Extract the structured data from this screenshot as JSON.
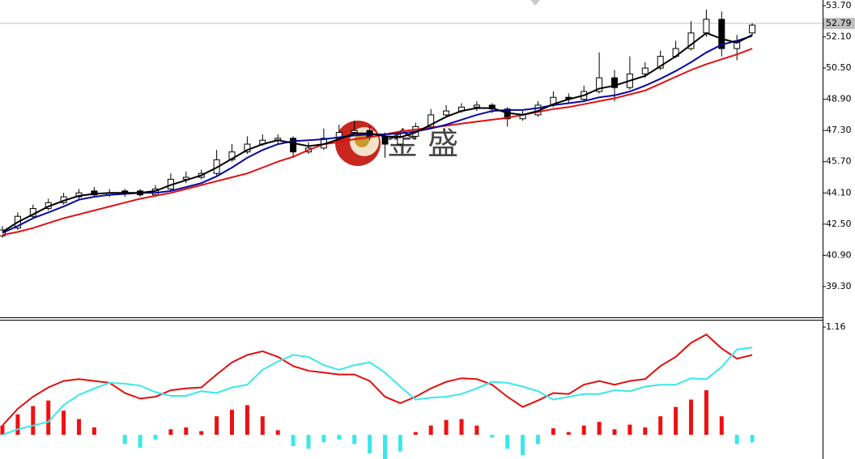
{
  "chart_data": [
    {
      "type": "candlestick",
      "watermark": "金 盛",
      "current_price": 52.79,
      "ylim": [
        37.72,
        53.99
      ],
      "yticks": [
        {
          "value": 53.7,
          "label": "53.70"
        },
        {
          "value": 52.1,
          "label": "52.10"
        },
        {
          "value": 50.5,
          "label": "50.50"
        },
        {
          "value": 48.9,
          "label": "48.90"
        },
        {
          "value": 47.3,
          "label": "47.30"
        },
        {
          "value": 45.7,
          "label": "45.70"
        },
        {
          "value": 44.1,
          "label": "44.10"
        },
        {
          "value": 42.5,
          "label": "42.50"
        },
        {
          "value": 40.9,
          "label": "40.90"
        },
        {
          "value": 39.3,
          "label": "39.30"
        }
      ],
      "open": [
        41.9,
        42.3,
        42.9,
        43.3,
        43.6,
        43.9,
        44.2,
        44.0,
        44.2,
        44.2,
        44.0,
        44.3,
        44.8,
        44.9,
        45.1,
        45.8,
        46.2,
        46.6,
        46.8,
        46.9,
        46.2,
        46.4,
        46.9,
        47.2,
        47.3,
        47.0,
        46.6,
        47.0,
        47.5,
        48.1,
        48.3,
        48.5,
        48.6,
        48.4,
        47.9,
        48.1,
        48.6,
        49.0,
        48.9,
        49.3,
        50.0,
        49.5,
        50.2,
        50.5,
        51.1,
        51.5,
        52.3,
        53.0,
        51.5,
        52.3
      ],
      "high": [
        42.4,
        43.1,
        43.5,
        43.8,
        44.1,
        44.3,
        44.4,
        44.3,
        44.3,
        44.3,
        44.5,
        45.1,
        45.2,
        45.3,
        46.3,
        46.6,
        47.0,
        47.1,
        47.1,
        47.0,
        46.7,
        47.4,
        47.6,
        47.8,
        47.5,
        47.2,
        47.3,
        47.7,
        48.4,
        48.6,
        48.7,
        48.8,
        48.7,
        48.5,
        48.3,
        48.8,
        49.3,
        49.2,
        49.6,
        51.3,
        50.4,
        51.1,
        50.8,
        51.4,
        51.9,
        52.9,
        53.5,
        53.4,
        52.2,
        52.8
      ],
      "low": [
        41.8,
        42.2,
        42.8,
        43.2,
        43.5,
        43.8,
        43.9,
        43.9,
        43.9,
        43.9,
        43.9,
        44.2,
        44.6,
        44.8,
        45.0,
        45.7,
        46.1,
        46.5,
        46.6,
        45.9,
        46.1,
        46.3,
        46.8,
        47.0,
        46.8,
        45.9,
        46.5,
        46.9,
        47.4,
        48.0,
        48.2,
        48.3,
        48.2,
        47.5,
        47.8,
        48.0,
        48.5,
        48.7,
        48.8,
        49.2,
        48.8,
        49.4,
        50.0,
        50.4,
        51.0,
        51.4,
        52.1,
        51.1,
        50.9,
        52.2
      ],
      "close": [
        42.2,
        42.9,
        43.3,
        43.6,
        43.9,
        44.1,
        44.0,
        44.1,
        44.1,
        44.0,
        44.3,
        44.8,
        44.9,
        45.1,
        45.8,
        46.2,
        46.6,
        46.8,
        46.9,
        46.2,
        46.4,
        46.9,
        47.2,
        47.3,
        47.0,
        46.6,
        47.0,
        47.5,
        48.1,
        48.3,
        48.5,
        48.6,
        48.4,
        47.9,
        48.1,
        48.6,
        49.0,
        48.9,
        49.3,
        50.0,
        49.5,
        50.2,
        50.5,
        51.1,
        51.5,
        52.3,
        53.0,
        51.5,
        51.9,
        52.7
      ],
      "series": [
        {
          "color": "#e01010",
          "values": [
            41.95,
            42.1,
            42.3,
            42.55,
            42.8,
            43.0,
            43.2,
            43.4,
            43.6,
            43.8,
            43.95,
            44.1,
            44.3,
            44.5,
            44.7,
            44.9,
            45.1,
            45.4,
            45.7,
            45.95,
            46.3,
            46.6,
            46.7,
            46.85,
            46.95,
            47.1,
            47.25,
            47.35,
            47.45,
            47.55,
            47.65,
            47.75,
            47.85,
            47.95,
            48.1,
            48.25,
            48.4,
            48.5,
            48.65,
            48.8,
            48.95,
            49.15,
            49.35,
            49.7,
            50.05,
            50.4,
            50.7,
            50.95,
            51.2,
            51.5
          ]
        },
        {
          "color": "#0a0aa0",
          "values": [
            42.05,
            42.4,
            42.8,
            43.1,
            43.4,
            43.75,
            43.9,
            44.0,
            44.05,
            44.1,
            44.1,
            44.2,
            44.4,
            44.6,
            44.95,
            45.4,
            45.9,
            46.3,
            46.6,
            46.75,
            46.8,
            46.85,
            46.95,
            47.05,
            47.1,
            47.1,
            47.15,
            47.25,
            47.4,
            47.6,
            47.85,
            48.1,
            48.3,
            48.35,
            48.35,
            48.45,
            48.6,
            48.7,
            48.8,
            49.0,
            49.1,
            49.3,
            49.6,
            49.95,
            50.35,
            50.8,
            51.3,
            51.7,
            51.9,
            52.15
          ]
        },
        {
          "color": "#000000",
          "values": [
            42.1,
            42.6,
            43.0,
            43.4,
            43.7,
            43.95,
            44.05,
            44.1,
            44.1,
            44.1,
            44.2,
            44.5,
            44.75,
            45.0,
            45.4,
            45.85,
            46.3,
            46.6,
            46.8,
            46.65,
            46.5,
            46.6,
            46.85,
            47.15,
            47.15,
            47.0,
            46.95,
            47.2,
            47.6,
            48.0,
            48.3,
            48.45,
            48.45,
            48.2,
            48.1,
            48.3,
            48.65,
            48.9,
            49.1,
            49.45,
            49.6,
            49.85,
            50.1,
            50.6,
            51.1,
            51.7,
            52.3,
            52.0,
            51.8,
            52.2
          ]
        }
      ]
    },
    {
      "type": "macd",
      "ylim": [
        -0.26,
        1.23
      ],
      "yticks": [
        1.16
      ],
      "histogram": {
        "color": "#ee1111",
        "negative_color": "#3ae8ea",
        "values": [
          0.1,
          0.22,
          0.31,
          0.37,
          0.26,
          0.17,
          0.08,
          0.0,
          -0.1,
          -0.14,
          -0.05,
          0.06,
          0.08,
          0.04,
          0.2,
          0.27,
          0.32,
          0.2,
          0.05,
          -0.12,
          -0.15,
          -0.08,
          -0.05,
          -0.1,
          -0.2,
          -0.26,
          -0.18,
          0.03,
          0.1,
          0.16,
          0.17,
          0.1,
          -0.03,
          -0.15,
          -0.22,
          -0.1,
          0.07,
          0.03,
          0.1,
          0.14,
          0.06,
          0.11,
          0.08,
          0.2,
          0.3,
          0.38,
          0.48,
          0.2,
          -0.1,
          -0.08
        ]
      },
      "series": [
        {
          "color": "#e01010",
          "values": [
            0.1,
            0.28,
            0.41,
            0.51,
            0.58,
            0.6,
            0.58,
            0.56,
            0.45,
            0.39,
            0.41,
            0.48,
            0.5,
            0.51,
            0.65,
            0.78,
            0.86,
            0.9,
            0.84,
            0.74,
            0.69,
            0.67,
            0.65,
            0.65,
            0.58,
            0.41,
            0.34,
            0.41,
            0.5,
            0.57,
            0.61,
            0.6,
            0.54,
            0.41,
            0.3,
            0.37,
            0.45,
            0.44,
            0.54,
            0.58,
            0.54,
            0.58,
            0.6,
            0.74,
            0.84,
            0.99,
            1.08,
            0.93,
            0.82,
            0.86
          ]
        },
        {
          "color": "#3ae8ea",
          "values": [
            0.0,
            0.06,
            0.1,
            0.14,
            0.32,
            0.43,
            0.5,
            0.56,
            0.55,
            0.53,
            0.46,
            0.42,
            0.42,
            0.47,
            0.45,
            0.51,
            0.54,
            0.7,
            0.79,
            0.86,
            0.84,
            0.75,
            0.7,
            0.75,
            0.78,
            0.67,
            0.52,
            0.38,
            0.4,
            0.41,
            0.44,
            0.5,
            0.57,
            0.56,
            0.52,
            0.47,
            0.38,
            0.41,
            0.44,
            0.44,
            0.48,
            0.47,
            0.52,
            0.54,
            0.54,
            0.61,
            0.6,
            0.73,
            0.92,
            0.94
          ]
        }
      ]
    }
  ]
}
